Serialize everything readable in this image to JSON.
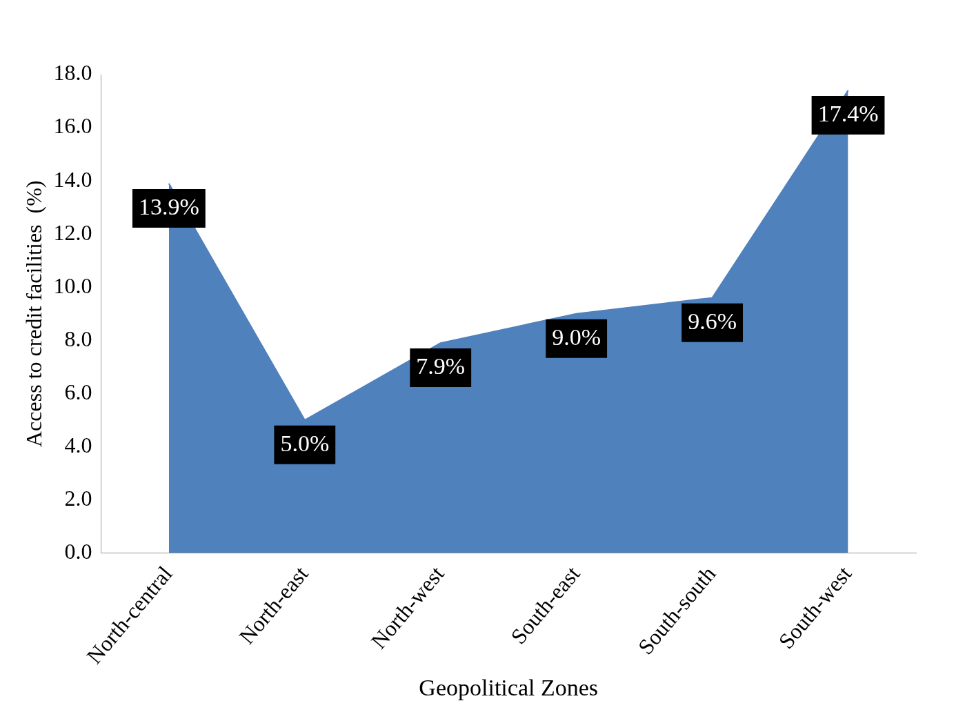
{
  "chart_data": {
    "type": "area",
    "xlabel": "Geopolitical Zones",
    "ylabel": "Access to credit facilities  (%)",
    "categories": [
      "North-central",
      "North-east",
      "North-west",
      "South-east",
      "South-south",
      "South-west"
    ],
    "series": [
      {
        "color": "#4f81bd",
        "values": [
          13.9,
          5.0,
          7.9,
          9.0,
          9.6,
          17.4
        ],
        "value_labels": [
          "13.9%",
          "5.0%",
          "7.9%",
          "9.0%",
          "9.6%",
          "17.4%"
        ]
      }
    ],
    "ylim": [
      0,
      18
    ],
    "yticks": [
      {
        "value": 0,
        "label": "0.0"
      },
      {
        "value": 2,
        "label": "2.0"
      },
      {
        "value": 4,
        "label": "4.0"
      },
      {
        "value": 6,
        "label": "6.0"
      },
      {
        "value": 8,
        "label": "8.0"
      },
      {
        "value": 10,
        "label": "10.0"
      },
      {
        "value": 12,
        "label": "12.0"
      },
      {
        "value": 14,
        "label": "14.0"
      },
      {
        "value": 16,
        "label": "16.0"
      },
      {
        "value": 18,
        "label": "18.0"
      }
    ],
    "grid": false,
    "legend": false
  }
}
